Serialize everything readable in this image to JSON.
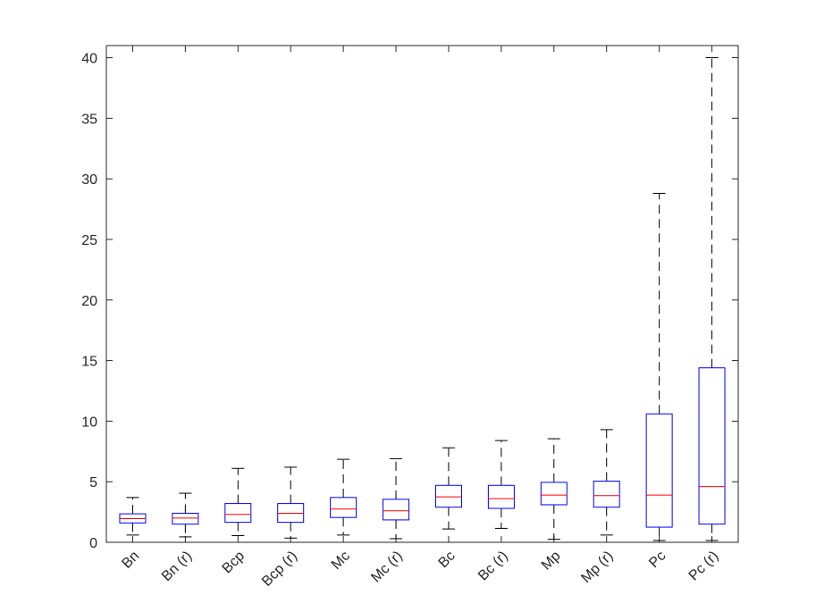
{
  "chart_data": {
    "type": "boxplot",
    "categories": [
      "Bn",
      "Bn (r)",
      "Bcp",
      "Bcp (r)",
      "Mc",
      "Mc (r)",
      "Bc",
      "Bc (r)",
      "Mp",
      "Mp (r)",
      "Pc",
      "Pc (r)"
    ],
    "boxes": [
      {
        "whisker_low": 0.6,
        "q1": 1.6,
        "median": 1.95,
        "q3": 2.35,
        "whisker_high": 3.7
      },
      {
        "whisker_low": 0.45,
        "q1": 1.5,
        "median": 2.0,
        "q3": 2.4,
        "whisker_high": 4.05
      },
      {
        "whisker_low": 0.55,
        "q1": 1.65,
        "median": 2.3,
        "q3": 3.2,
        "whisker_high": 6.1
      },
      {
        "whisker_low": 0.35,
        "q1": 1.65,
        "median": 2.4,
        "q3": 3.2,
        "whisker_high": 6.2
      },
      {
        "whisker_low": 0.6,
        "q1": 2.05,
        "median": 2.75,
        "q3": 3.7,
        "whisker_high": 6.85
      },
      {
        "whisker_low": 0.3,
        "q1": 1.85,
        "median": 2.6,
        "q3": 3.55,
        "whisker_high": 6.9
      },
      {
        "whisker_low": 1.1,
        "q1": 2.9,
        "median": 3.75,
        "q3": 4.7,
        "whisker_high": 7.8
      },
      {
        "whisker_low": 1.15,
        "q1": 2.8,
        "median": 3.6,
        "q3": 4.7,
        "whisker_high": 8.4
      },
      {
        "whisker_low": 0.25,
        "q1": 3.1,
        "median": 3.9,
        "q3": 4.95,
        "whisker_high": 8.55
      },
      {
        "whisker_low": 0.6,
        "q1": 2.9,
        "median": 3.85,
        "q3": 5.05,
        "whisker_high": 9.3
      },
      {
        "whisker_low": 0.15,
        "q1": 1.25,
        "median": 3.9,
        "q3": 10.6,
        "whisker_high": 28.8
      },
      {
        "whisker_low": 0.15,
        "q1": 1.5,
        "median": 4.6,
        "q3": 14.4,
        "whisker_high": 40.0
      }
    ],
    "ylim": [
      0,
      41
    ],
    "yticks": [
      0,
      5,
      10,
      15,
      20,
      25,
      30,
      35,
      40
    ],
    "title": "",
    "xlabel": "",
    "ylabel": "",
    "grid": false,
    "colors": {
      "box": "#0000ff",
      "median": "#ff0000",
      "whisker": "#000000",
      "axis": "#262626"
    }
  }
}
